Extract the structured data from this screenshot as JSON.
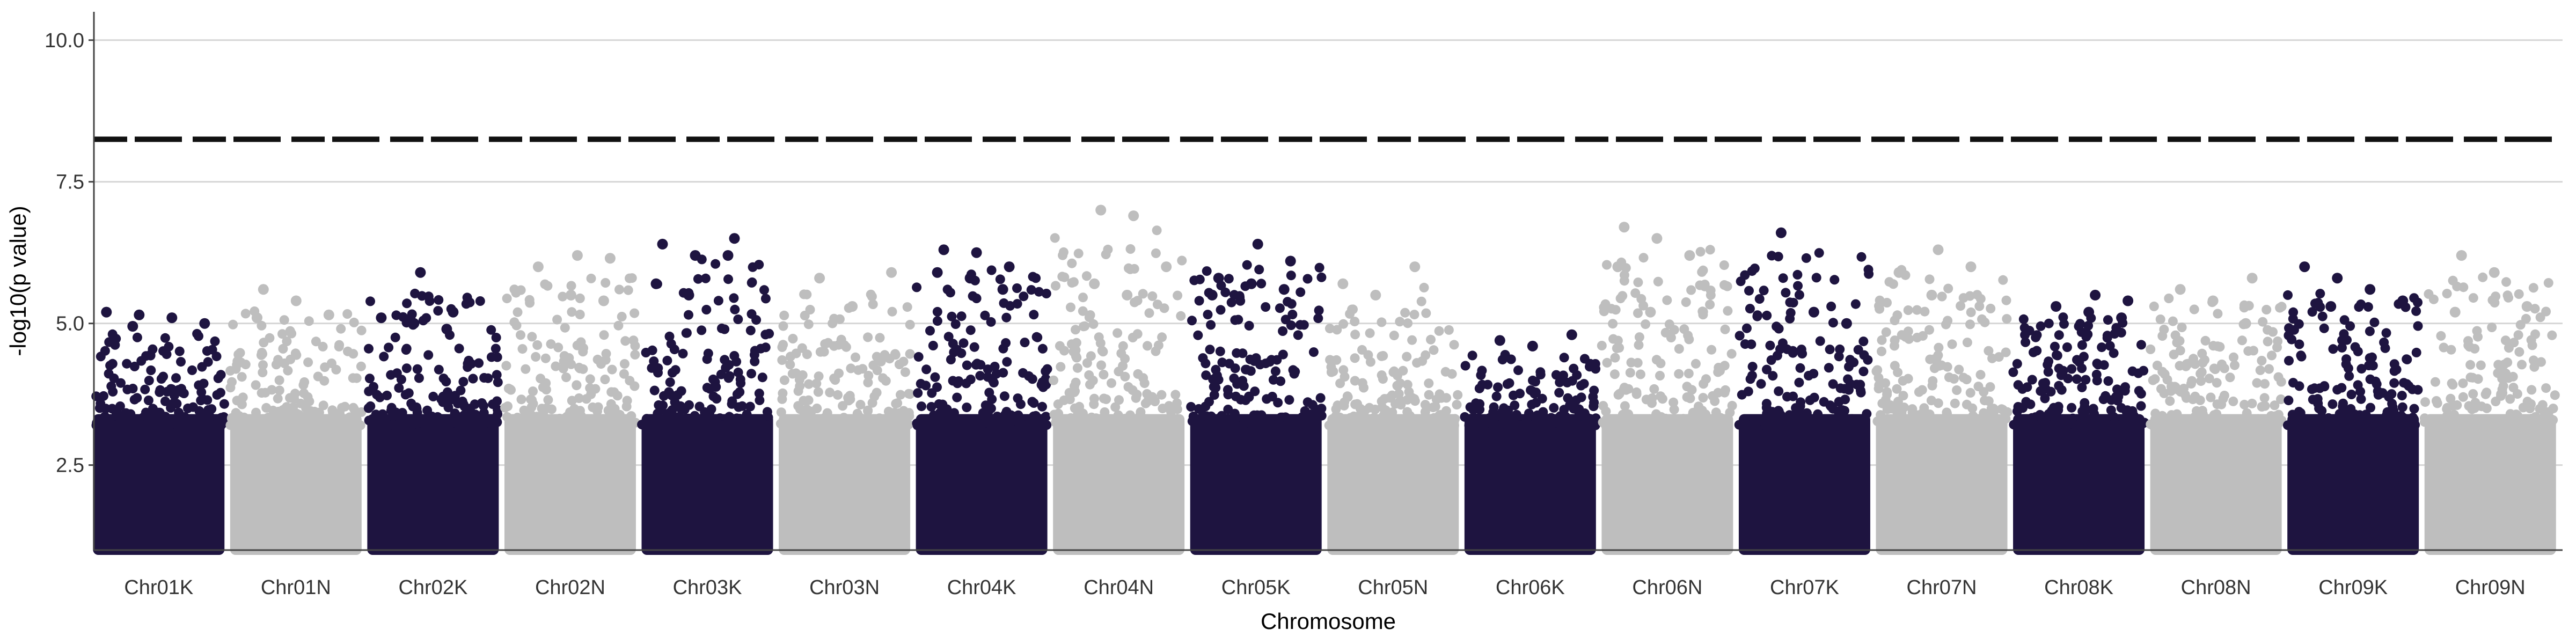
{
  "chart_data": {
    "type": "scatter",
    "subtype": "manhattan",
    "title": "",
    "xlabel": "Chromosome",
    "ylabel": "-log10(p value)",
    "ylim": [
      1.0,
      10.5
    ],
    "yticks": [
      "2.5",
      "5.0",
      "7.5",
      "10.0"
    ],
    "ytick_values": [
      2.5,
      5.0,
      7.5,
      10.0
    ],
    "grid": "horizontal major gridlines at each y tick",
    "legend": "none",
    "threshold": 8.25,
    "threshold_style": "dashed",
    "point_min": 1.0,
    "colors": {
      "odd_chromosome": "#1e1440",
      "even_chromosome": "#bebebe",
      "threshold": "#111111",
      "grid": "#d6d6d6",
      "axis": "#444444"
    },
    "categories": [
      "Chr01K",
      "Chr01N",
      "Chr02K",
      "Chr02N",
      "Chr03K",
      "Chr03N",
      "Chr04K",
      "Chr04N",
      "Chr05K",
      "Chr05N",
      "Chr06K",
      "Chr06N",
      "Chr07K",
      "Chr07N",
      "Chr08K",
      "Chr08N",
      "Chr09K",
      "Chr09N"
    ],
    "chromosome_max": [
      5.2,
      5.6,
      5.9,
      6.2,
      6.5,
      5.9,
      6.3,
      7.0,
      6.4,
      6.0,
      4.8,
      6.7,
      6.6,
      6.3,
      5.5,
      5.8,
      6.0,
      6.2
    ],
    "top_hits": [
      {
        "chromosome": "Chr01K",
        "y": [
          5.2,
          5.15,
          5.1,
          5.0,
          4.95
        ]
      },
      {
        "chromosome": "Chr01N",
        "y": [
          5.6,
          5.4,
          5.15,
          5.1
        ]
      },
      {
        "chromosome": "Chr02K",
        "y": [
          5.9,
          5.2,
          5.1,
          5.0,
          4.9
        ]
      },
      {
        "chromosome": "Chr02N",
        "y": [
          6.2,
          6.15,
          6.0,
          5.5,
          5.4
        ]
      },
      {
        "chromosome": "Chr03K",
        "y": [
          6.5,
          6.4,
          6.2,
          6.2,
          5.7,
          5.5
        ]
      },
      {
        "chromosome": "Chr03N",
        "y": [
          5.9,
          5.8,
          5.3
        ]
      },
      {
        "chromosome": "Chr04K",
        "y": [
          6.3,
          6.25,
          6.0,
          5.9,
          5.8,
          5.6
        ]
      },
      {
        "chromosome": "Chr04N",
        "y": [
          7.0,
          6.9,
          6.0,
          5.7,
          5.5
        ]
      },
      {
        "chromosome": "Chr05K",
        "y": [
          6.4,
          6.1,
          5.8,
          5.7,
          5.6,
          5.5
        ]
      },
      {
        "chromosome": "Chr05N",
        "y": [
          6.0,
          5.7,
          5.5
        ]
      },
      {
        "chromosome": "Chr06K",
        "y": [
          4.8,
          4.7,
          4.6
        ]
      },
      {
        "chromosome": "Chr06N",
        "y": [
          6.7,
          6.5,
          6.2,
          6.0,
          5.2
        ]
      },
      {
        "chromosome": "Chr07K",
        "y": [
          6.6,
          5.2,
          5.0
        ]
      },
      {
        "chromosome": "Chr07N",
        "y": [
          6.3,
          6.0,
          5.9,
          5.5
        ]
      },
      {
        "chromosome": "Chr08K",
        "y": [
          5.5,
          5.4,
          5.3,
          5.2,
          5.1
        ]
      },
      {
        "chromosome": "Chr08N",
        "y": [
          5.8,
          5.6,
          5.4,
          5.0
        ]
      },
      {
        "chromosome": "Chr09K",
        "y": [
          6.0,
          5.8,
          5.6,
          5.4,
          5.3
        ]
      },
      {
        "chromosome": "Chr09N",
        "y": [
          6.2,
          5.9,
          5.3,
          5.2
        ]
      }
    ]
  }
}
